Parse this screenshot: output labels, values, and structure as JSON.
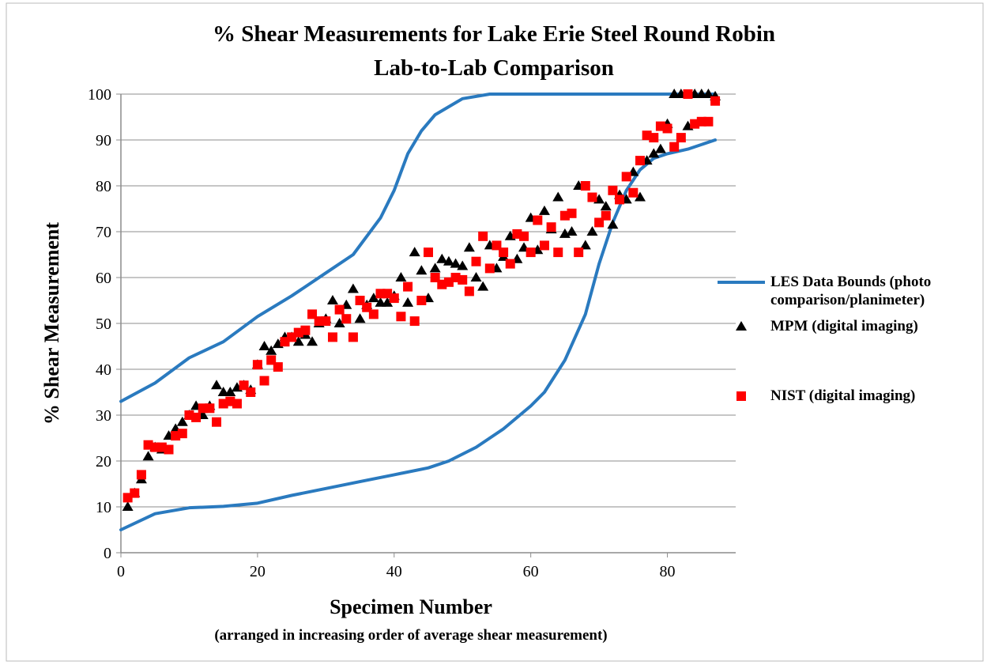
{
  "chart_data": {
    "type": "scatter",
    "title": [
      "% Shear Measurements for Lake Erie Steel Round Robin",
      "Lab-to-Lab Comparison"
    ],
    "x_label": "Specimen Number",
    "x_note": "(arranged in increasing order of average shear measurement)",
    "y_label": "% Shear Measurement",
    "xlim": [
      0,
      90
    ],
    "xticks": [
      0,
      20,
      40,
      60,
      80
    ],
    "ylim": [
      0,
      100
    ],
    "yticks": [
      0,
      10,
      20,
      30,
      40,
      50,
      60,
      70,
      80,
      90,
      100
    ],
    "grid": true,
    "legend": "right",
    "series": [
      {
        "name": "LES Data Bounds (photo comparison/planimeter)",
        "color": "#2a7abf",
        "marker": "line",
        "x": [
          0,
          5,
          10,
          15,
          20,
          25,
          30,
          34,
          38,
          40,
          42,
          44,
          46,
          50,
          54,
          60,
          70,
          80,
          87,
          null,
          0,
          5,
          10,
          15,
          20,
          25,
          30,
          35,
          40,
          45,
          48,
          52,
          56,
          60,
          62,
          65,
          68,
          70,
          72,
          74,
          76,
          78,
          80,
          83,
          87
        ],
        "values": [
          33,
          37,
          42.5,
          46,
          51.5,
          56,
          61,
          65,
          73,
          79,
          87,
          92,
          95.5,
          99,
          100,
          100,
          100,
          100,
          100,
          null,
          5,
          8.5,
          9.8,
          10.1,
          10.8,
          12.5,
          14,
          15.5,
          17,
          18.5,
          20,
          23,
          27,
          32,
          35,
          42,
          52,
          63,
          72,
          79,
          83.5,
          86,
          87,
          88,
          90
        ]
      },
      {
        "name": "MPM (digital imaging)",
        "color": "#000000",
        "marker": "triangle",
        "x": [
          1,
          2,
          3,
          4,
          5,
          6,
          7,
          8,
          9,
          10,
          11,
          12,
          13,
          14,
          15,
          16,
          17,
          18,
          19,
          20,
          21,
          22,
          23,
          24,
          25,
          26,
          27,
          28,
          29,
          30,
          31,
          32,
          33,
          34,
          35,
          36,
          37,
          38,
          39,
          40,
          41,
          42,
          43,
          44,
          45,
          46,
          47,
          48,
          49,
          50,
          51,
          52,
          53,
          54,
          55,
          56,
          57,
          58,
          59,
          60,
          61,
          62,
          63,
          64,
          65,
          66,
          67,
          68,
          69,
          70,
          71,
          72,
          73,
          74,
          75,
          76,
          77,
          78,
          79,
          80,
          81,
          82,
          83,
          84,
          85,
          86,
          87
        ],
        "values": [
          10,
          13,
          16,
          21,
          23,
          22.5,
          25.5,
          27,
          28.5,
          30,
          32,
          30,
          32,
          36.5,
          35,
          35,
          36,
          36.5,
          35.5,
          41,
          45,
          44,
          45.5,
          47,
          47,
          46,
          47.5,
          46,
          50,
          51,
          55,
          50,
          54,
          57.5,
          51,
          54,
          55.5,
          54.5,
          54.5,
          56,
          60,
          54.5,
          65.5,
          61.5,
          55.5,
          62,
          64,
          63.5,
          63,
          62.5,
          66.5,
          60,
          58,
          67,
          62,
          64.5,
          69,
          64,
          66.5,
          73,
          66,
          74.5,
          70.5,
          77.5,
          69.5,
          70,
          80,
          67,
          70,
          77,
          75.5,
          71.5,
          78,
          77,
          83,
          77.5,
          85.5,
          87,
          88,
          93.5,
          100,
          100,
          93,
          100,
          100,
          100,
          99.5
        ]
      },
      {
        "name": "NIST (digital imaging)",
        "color": "#ff0000",
        "marker": "square",
        "x": [
          1,
          2,
          3,
          4,
          5,
          6,
          7,
          8,
          9,
          10,
          11,
          12,
          13,
          14,
          15,
          16,
          17,
          18,
          19,
          20,
          21,
          22,
          23,
          24,
          25,
          26,
          27,
          28,
          29,
          30,
          31,
          32,
          33,
          34,
          35,
          36,
          37,
          38,
          39,
          40,
          41,
          42,
          43,
          44,
          45,
          46,
          47,
          48,
          49,
          50,
          51,
          52,
          53,
          54,
          55,
          56,
          57,
          58,
          59,
          60,
          61,
          62,
          63,
          64,
          65,
          66,
          67,
          68,
          69,
          70,
          71,
          72,
          73,
          74,
          75,
          76,
          77,
          78,
          79,
          80,
          81,
          82,
          83,
          84,
          85,
          86,
          87
        ],
        "values": [
          12,
          13,
          17,
          23.5,
          23,
          23,
          22.5,
          25.5,
          26,
          30,
          29.5,
          31.5,
          31.5,
          28.5,
          32.5,
          33,
          32.5,
          36.5,
          35,
          41,
          37.5,
          42,
          40.5,
          46,
          47,
          48,
          48.5,
          52,
          50.5,
          50.5,
          47,
          53,
          51,
          47,
          55,
          53.5,
          52,
          56.5,
          56.5,
          55.5,
          51.5,
          58,
          50.5,
          55,
          65.5,
          60,
          58.5,
          59,
          60,
          59.5,
          57,
          63.5,
          69,
          62,
          67,
          65.5,
          63,
          69.5,
          69,
          65.5,
          72.5,
          67,
          71,
          65.5,
          73.5,
          74,
          65.5,
          80,
          77.5,
          72,
          73.5,
          79,
          77,
          82,
          78.5,
          85.5,
          91,
          90.5,
          93,
          92.5,
          88.5,
          90.5,
          100,
          93.5,
          94,
          94,
          98.5
        ]
      }
    ]
  }
}
